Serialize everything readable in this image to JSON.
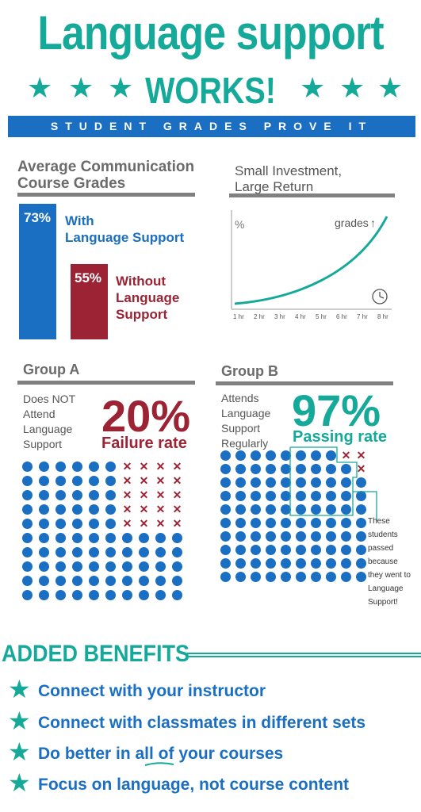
{
  "header": {
    "title": "Language support",
    "subtitle": "WORKS!",
    "star": "★",
    "banner": "STUDENT GRADES PROVE IT"
  },
  "grades": {
    "heading_line1": "Average Communication",
    "heading_line2": "Course Grades",
    "with": {
      "value_label": "73%",
      "value": 73,
      "line1": "With",
      "line2": "Language Support"
    },
    "without": {
      "value_label": "55%",
      "value": 55,
      "line1": "Without",
      "line2": "Language",
      "line3": "Support"
    }
  },
  "investment": {
    "heading_line1": "Small Investment,",
    "heading_line2": "Large Return",
    "y_label": "%",
    "curve_label": "grades",
    "arrow": "↑",
    "clock_icon": "clock-icon",
    "chart_data": {
      "type": "line",
      "x": [
        "1 hr",
        "2 hr",
        "3 hr",
        "4 hr",
        "5 hr",
        "6 hr",
        "7 hr",
        "8 hr"
      ],
      "ylabel": "%",
      "trend": "increasing"
    }
  },
  "group_a": {
    "heading": "Group A",
    "desc": [
      "Does NOT",
      "Attend",
      "Language",
      "Support"
    ],
    "stat": "20%",
    "stat_label": "Failure rate",
    "total": 100,
    "failed": 20
  },
  "group_b": {
    "heading": "Group B",
    "desc": [
      "Attends",
      "Language",
      "Support",
      "Regularly"
    ],
    "stat": "97%",
    "stat_label": "Passing rate",
    "total": 100,
    "failed": 3,
    "note": [
      "These students",
      "passed because",
      "they went to",
      "Language",
      "Support!"
    ]
  },
  "benefits": {
    "heading": "ADDED BENEFITS",
    "star": "★",
    "items": [
      "Connect with your instructor",
      "Connect with classmates in different sets",
      "Do better in all of your courses",
      "Focus on language, not course content"
    ]
  },
  "colors": {
    "teal": "#15a99a",
    "blue": "#1a6fc2",
    "red": "#9b2333",
    "gray": "#808080"
  }
}
